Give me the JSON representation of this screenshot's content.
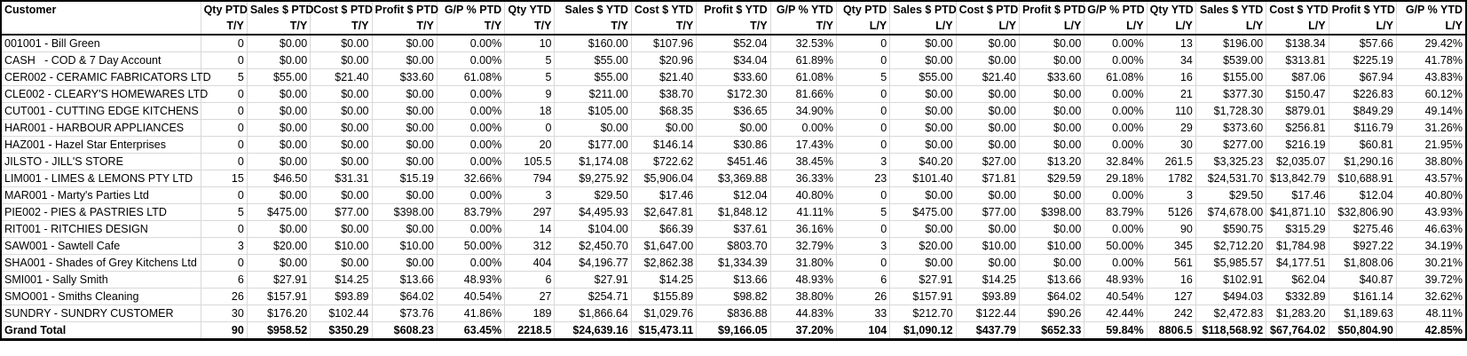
{
  "colors": {
    "background": "#ffffff",
    "text": "#000000",
    "grid_line": "#d9d9d9",
    "outer_border": "#000000"
  },
  "report": {
    "columns": [
      {
        "label": "Customer",
        "sub": ""
      },
      {
        "label": "Qty PTD",
        "sub": "T/Y"
      },
      {
        "label": "Sales $ PTD",
        "sub": "T/Y"
      },
      {
        "label": "Cost $ PTD",
        "sub": "T/Y"
      },
      {
        "label": "Profit $ PTD",
        "sub": "T/Y"
      },
      {
        "label": "G/P % PTD",
        "sub": "T/Y"
      },
      {
        "label": "Qty YTD",
        "sub": "T/Y"
      },
      {
        "label": "Sales $ YTD",
        "sub": "T/Y"
      },
      {
        "label": "Cost $ YTD",
        "sub": "T/Y"
      },
      {
        "label": "Profit $ YTD",
        "sub": "T/Y"
      },
      {
        "label": "G/P % YTD",
        "sub": "T/Y"
      },
      {
        "label": "Qty PTD",
        "sub": "L/Y"
      },
      {
        "label": "Sales $ PTD",
        "sub": "L/Y"
      },
      {
        "label": "Cost $ PTD",
        "sub": "L/Y"
      },
      {
        "label": "Profit $ PTD",
        "sub": "L/Y"
      },
      {
        "label": "G/P % PTD",
        "sub": "L/Y"
      },
      {
        "label": "Qty YTD",
        "sub": "L/Y"
      },
      {
        "label": "Sales $ YTD",
        "sub": "L/Y"
      },
      {
        "label": "Cost $ YTD",
        "sub": "L/Y"
      },
      {
        "label": "Profit $ YTD",
        "sub": "L/Y"
      },
      {
        "label": "G/P % YTD",
        "sub": "L/Y"
      }
    ],
    "rows": [
      {
        "customer": "001001 - Bill Green",
        "values": [
          "0",
          "$0.00",
          "$0.00",
          "$0.00",
          "0.00%",
          "10",
          "$160.00",
          "$107.96",
          "$52.04",
          "32.53%",
          "0",
          "$0.00",
          "$0.00",
          "$0.00",
          "0.00%",
          "13",
          "$196.00",
          "$138.34",
          "$57.66",
          "29.42%"
        ]
      },
      {
        "customer": "CASH   - COD & 7 Day Account",
        "values": [
          "0",
          "$0.00",
          "$0.00",
          "$0.00",
          "0.00%",
          "5",
          "$55.00",
          "$20.96",
          "$34.04",
          "61.89%",
          "0",
          "$0.00",
          "$0.00",
          "$0.00",
          "0.00%",
          "34",
          "$539.00",
          "$313.81",
          "$225.19",
          "41.78%"
        ]
      },
      {
        "customer": "CER002 - CERAMIC FABRICATORS LTD",
        "values": [
          "5",
          "$55.00",
          "$21.40",
          "$33.60",
          "61.08%",
          "5",
          "$55.00",
          "$21.40",
          "$33.60",
          "61.08%",
          "5",
          "$55.00",
          "$21.40",
          "$33.60",
          "61.08%",
          "16",
          "$155.00",
          "$87.06",
          "$67.94",
          "43.83%"
        ]
      },
      {
        "customer": "CLE002 - CLEARY'S HOMEWARES LTD",
        "values": [
          "0",
          "$0.00",
          "$0.00",
          "$0.00",
          "0.00%",
          "9",
          "$211.00",
          "$38.70",
          "$172.30",
          "81.66%",
          "0",
          "$0.00",
          "$0.00",
          "$0.00",
          "0.00%",
          "21",
          "$377.30",
          "$150.47",
          "$226.83",
          "60.12%"
        ]
      },
      {
        "customer": "CUT001 - CUTTING EDGE KITCHENS",
        "values": [
          "0",
          "$0.00",
          "$0.00",
          "$0.00",
          "0.00%",
          "18",
          "$105.00",
          "$68.35",
          "$36.65",
          "34.90%",
          "0",
          "$0.00",
          "$0.00",
          "$0.00",
          "0.00%",
          "110",
          "$1,728.30",
          "$879.01",
          "$849.29",
          "49.14%"
        ]
      },
      {
        "customer": "HAR001 - HARBOUR APPLIANCES",
        "values": [
          "0",
          "$0.00",
          "$0.00",
          "$0.00",
          "0.00%",
          "0",
          "$0.00",
          "$0.00",
          "$0.00",
          "0.00%",
          "0",
          "$0.00",
          "$0.00",
          "$0.00",
          "0.00%",
          "29",
          "$373.60",
          "$256.81",
          "$116.79",
          "31.26%"
        ]
      },
      {
        "customer": "HAZ001 - Hazel Star Enterprises",
        "values": [
          "0",
          "$0.00",
          "$0.00",
          "$0.00",
          "0.00%",
          "20",
          "$177.00",
          "$146.14",
          "$30.86",
          "17.43%",
          "0",
          "$0.00",
          "$0.00",
          "$0.00",
          "0.00%",
          "30",
          "$277.00",
          "$216.19",
          "$60.81",
          "21.95%"
        ]
      },
      {
        "customer": "JILSTO - JILL'S STORE",
        "values": [
          "0",
          "$0.00",
          "$0.00",
          "$0.00",
          "0.00%",
          "105.5",
          "$1,174.08",
          "$722.62",
          "$451.46",
          "38.45%",
          "3",
          "$40.20",
          "$27.00",
          "$13.20",
          "32.84%",
          "261.5",
          "$3,325.23",
          "$2,035.07",
          "$1,290.16",
          "38.80%"
        ]
      },
      {
        "customer": "LIM001 - LIMES & LEMONS PTY LTD",
        "values": [
          "15",
          "$46.50",
          "$31.31",
          "$15.19",
          "32.66%",
          "794",
          "$9,275.92",
          "$5,906.04",
          "$3,369.88",
          "36.33%",
          "23",
          "$101.40",
          "$71.81",
          "$29.59",
          "29.18%",
          "1782",
          "$24,531.70",
          "$13,842.79",
          "$10,688.91",
          "43.57%"
        ]
      },
      {
        "customer": "MAR001 - Marty's Parties Ltd",
        "values": [
          "0",
          "$0.00",
          "$0.00",
          "$0.00",
          "0.00%",
          "3",
          "$29.50",
          "$17.46",
          "$12.04",
          "40.80%",
          "0",
          "$0.00",
          "$0.00",
          "$0.00",
          "0.00%",
          "3",
          "$29.50",
          "$17.46",
          "$12.04",
          "40.80%"
        ]
      },
      {
        "customer": "PIE002 - PIES & PASTRIES LTD",
        "values": [
          "5",
          "$475.00",
          "$77.00",
          "$398.00",
          "83.79%",
          "297",
          "$4,495.93",
          "$2,647.81",
          "$1,848.12",
          "41.11%",
          "5",
          "$475.00",
          "$77.00",
          "$398.00",
          "83.79%",
          "5126",
          "$74,678.00",
          "$41,871.10",
          "$32,806.90",
          "43.93%"
        ]
      },
      {
        "customer": "RIT001 - RITCHIES DESIGN",
        "values": [
          "0",
          "$0.00",
          "$0.00",
          "$0.00",
          "0.00%",
          "14",
          "$104.00",
          "$66.39",
          "$37.61",
          "36.16%",
          "0",
          "$0.00",
          "$0.00",
          "$0.00",
          "0.00%",
          "90",
          "$590.75",
          "$315.29",
          "$275.46",
          "46.63%"
        ]
      },
      {
        "customer": "SAW001 - Sawtell Cafe",
        "values": [
          "3",
          "$20.00",
          "$10.00",
          "$10.00",
          "50.00%",
          "312",
          "$2,450.70",
          "$1,647.00",
          "$803.70",
          "32.79%",
          "3",
          "$20.00",
          "$10.00",
          "$10.00",
          "50.00%",
          "345",
          "$2,712.20",
          "$1,784.98",
          "$927.22",
          "34.19%"
        ]
      },
      {
        "customer": "SHA001 - Shades of Grey Kitchens Ltd",
        "values": [
          "0",
          "$0.00",
          "$0.00",
          "$0.00",
          "0.00%",
          "404",
          "$4,196.77",
          "$2,862.38",
          "$1,334.39",
          "31.80%",
          "0",
          "$0.00",
          "$0.00",
          "$0.00",
          "0.00%",
          "561",
          "$5,985.57",
          "$4,177.51",
          "$1,808.06",
          "30.21%"
        ]
      },
      {
        "customer": "SMI001 - Sally Smith",
        "values": [
          "6",
          "$27.91",
          "$14.25",
          "$13.66",
          "48.93%",
          "6",
          "$27.91",
          "$14.25",
          "$13.66",
          "48.93%",
          "6",
          "$27.91",
          "$14.25",
          "$13.66",
          "48.93%",
          "16",
          "$102.91",
          "$62.04",
          "$40.87",
          "39.72%"
        ]
      },
      {
        "customer": "SMO001 - Smiths Cleaning",
        "values": [
          "26",
          "$157.91",
          "$93.89",
          "$64.02",
          "40.54%",
          "27",
          "$254.71",
          "$155.89",
          "$98.82",
          "38.80%",
          "26",
          "$157.91",
          "$93.89",
          "$64.02",
          "40.54%",
          "127",
          "$494.03",
          "$332.89",
          "$161.14",
          "32.62%"
        ]
      },
      {
        "customer": "SUNDRY - SUNDRY CUSTOMER",
        "values": [
          "30",
          "$176.20",
          "$102.44",
          "$73.76",
          "41.86%",
          "189",
          "$1,866.64",
          "$1,029.76",
          "$836.88",
          "44.83%",
          "33",
          "$212.70",
          "$122.44",
          "$90.26",
          "42.44%",
          "242",
          "$2,472.83",
          "$1,283.20",
          "$1,189.63",
          "48.11%"
        ]
      }
    ],
    "grand_total": {
      "customer": "Grand Total",
      "values": [
        "90",
        "$958.52",
        "$350.29",
        "$608.23",
        "63.45%",
        "2218.5",
        "$24,639.16",
        "$15,473.11",
        "$9,166.05",
        "37.20%",
        "104",
        "$1,090.12",
        "$437.79",
        "$652.33",
        "59.84%",
        "8806.5",
        "$118,568.92",
        "$67,764.02",
        "$50,804.90",
        "42.85%"
      ]
    }
  }
}
